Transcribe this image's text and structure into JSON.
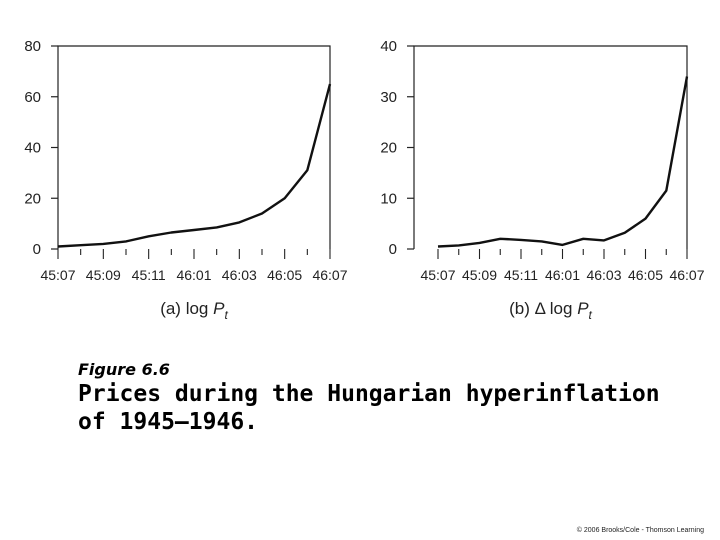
{
  "figure": {
    "label": "Figure 6.6",
    "title": "Prices during the Hungarian hyperinflation of 1945–1946."
  },
  "credit": "© 2006 Brooks/Cole - Thomson Learning",
  "chart_data": [
    {
      "type": "line",
      "title": "",
      "caption": {
        "prefix": "(a) log ",
        "var": "P",
        "sub": "t"
      },
      "xlabel": "",
      "ylabel": "",
      "x_ticks": [
        "45:07",
        "45:09",
        "45:11",
        "46:01",
        "46:03",
        "46:05",
        "46:07"
      ],
      "ylim": [
        0,
        80
      ],
      "y_ticks": [
        0,
        20,
        40,
        60,
        80
      ],
      "grid": false,
      "series": [
        {
          "x": [
            0,
            1,
            2,
            3,
            4,
            5,
            6,
            7,
            8,
            9,
            10,
            11,
            12
          ],
          "values": [
            1.0,
            1.5,
            2.0,
            3.0,
            5.0,
            6.5,
            7.5,
            8.5,
            10.5,
            14.0,
            20.0,
            31.0,
            65.0
          ]
        }
      ]
    },
    {
      "type": "line",
      "title": "",
      "caption": {
        "prefix": "(b) Δ log ",
        "var": "P",
        "sub": "t"
      },
      "xlabel": "",
      "ylabel": "",
      "x_ticks": [
        "45:07",
        "45:09",
        "45:11",
        "46:01",
        "46:03",
        "46:05",
        "46:07"
      ],
      "ylim": [
        0,
        40
      ],
      "y_ticks": [
        0,
        10,
        20,
        30,
        40
      ],
      "grid": false,
      "series": [
        {
          "x": [
            0,
            1,
            2,
            3,
            4,
            5,
            6,
            7,
            8,
            9,
            10,
            11,
            12
          ],
          "values": [
            0.5,
            0.7,
            1.2,
            2.0,
            1.8,
            1.5,
            0.8,
            2.0,
            1.7,
            3.2,
            6.0,
            11.5,
            34.0
          ]
        }
      ]
    }
  ]
}
